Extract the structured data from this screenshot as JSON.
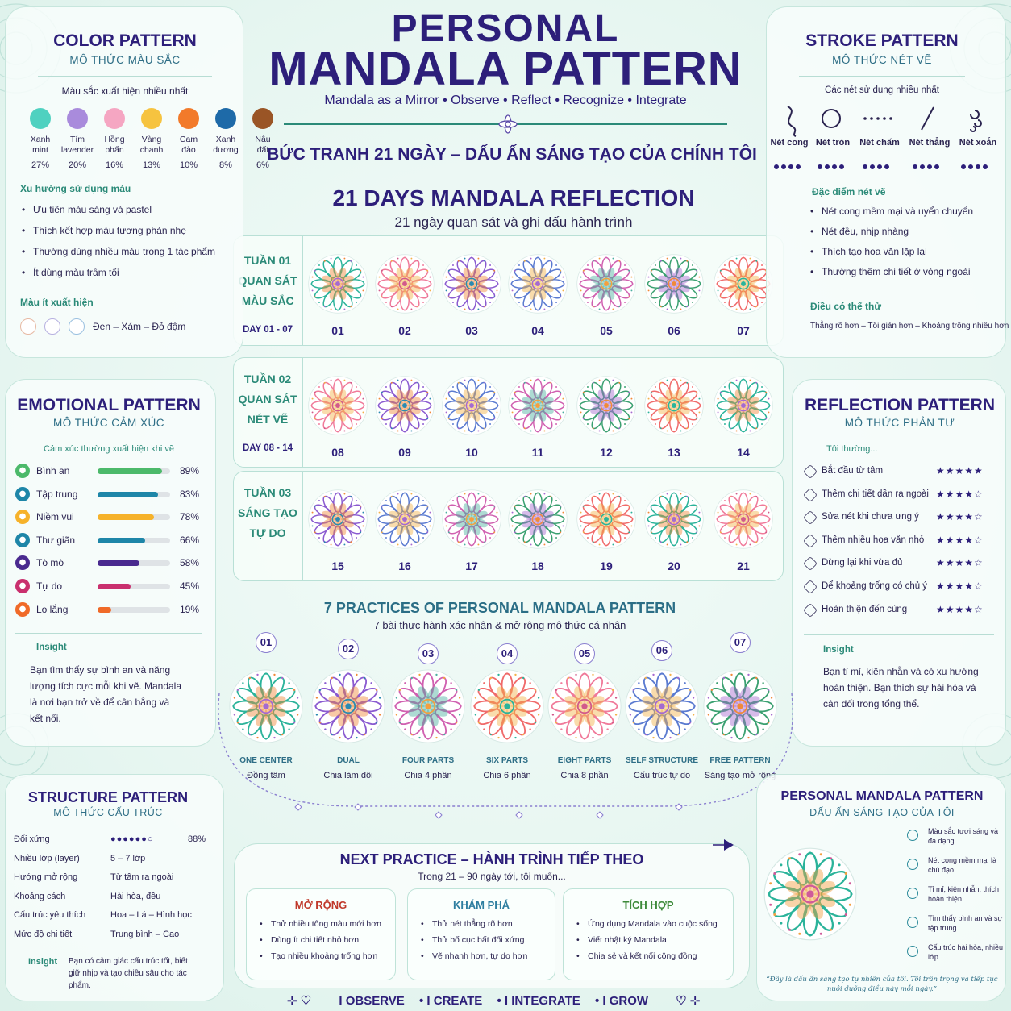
{
  "header": {
    "line1": "PERSONAL",
    "line2": "MANDALA PATTERN",
    "tagline": "Mandala as a Mirror  •  Observe  •  Reflect  •  Recognize  •  Integrate",
    "banner": "BỨC TRANH 21 NGÀY – DẤU ẤN SÁNG TẠO CỦA CHÍNH TÔI"
  },
  "reflection": {
    "title": "21 DAYS MANDALA REFLECTION",
    "subtitle": "21 ngày quan sát và ghi dấu hành trình",
    "weeks": [
      {
        "line1": "TUẦN 01",
        "line2": "QUAN SÁT",
        "line3": "MÀU SẮC",
        "days": "DAY 01 - 07",
        "nums": [
          "01",
          "02",
          "03",
          "04",
          "05",
          "06",
          "07"
        ]
      },
      {
        "line1": "TUẦN 02",
        "line2": "QUAN SÁT",
        "line3": "NÉT VẼ",
        "days": "DAY 08 - 14",
        "nums": [
          "08",
          "09",
          "10",
          "11",
          "12",
          "13",
          "14"
        ]
      },
      {
        "line1": "TUẦN 03",
        "line2": "SÁNG TẠO",
        "line3": "TỰ DO",
        "days": "",
        "nums": [
          "15",
          "16",
          "17",
          "18",
          "19",
          "20",
          "21"
        ]
      }
    ]
  },
  "color_pattern": {
    "title": "COLOR PATTERN",
    "subtitle": "MÔ THỨC MÀU SẮC",
    "caption": "Màu sắc xuất hiện nhiều nhất",
    "colors": [
      {
        "l1": "Xanh",
        "l2": "mint",
        "pct": "27%",
        "hex": "#4fd1c0"
      },
      {
        "l1": "Tím",
        "l2": "lavender",
        "pct": "20%",
        "hex": "#a98bdc"
      },
      {
        "l1": "Hồng",
        "l2": "phấn",
        "pct": "16%",
        "hex": "#f5a6c2"
      },
      {
        "l1": "Vàng",
        "l2": "chanh",
        "pct": "13%",
        "hex": "#f6c33f"
      },
      {
        "l1": "Cam",
        "l2": "đào",
        "pct": "10%",
        "hex": "#f27a2a"
      },
      {
        "l1": "Xanh",
        "l2": "dương",
        "pct": "8%",
        "hex": "#1e6aa8"
      },
      {
        "l1": "Nâu",
        "l2": "đất",
        "pct": "6%",
        "hex": "#9a5526"
      }
    ],
    "trend_title": "Xu hướng sử dụng màu",
    "trends": [
      "Ưu tiên màu sáng và pastel",
      "Thích kết hợp màu tương phản nhẹ",
      "Thường dùng nhiều màu trong 1 tác phẩm",
      "Ít dùng màu trầm tối"
    ],
    "rare_title": "Màu ít xuất hiện",
    "rare_text": "Đen – Xám – Đỏ đậm"
  },
  "stroke_pattern": {
    "title": "STROKE PATTERN",
    "subtitle": "MÔ THỨC NÉT VẼ",
    "caption": "Các nét sử dụng nhiều nhất",
    "strokes": [
      {
        "label": "Nét cong",
        "icon": "curve-icon"
      },
      {
        "label": "Nét tròn",
        "icon": "circle-icon"
      },
      {
        "label": "Nét chấm",
        "icon": "dots-icon"
      },
      {
        "label": "Nét thẳng",
        "icon": "line-icon"
      },
      {
        "label": "Nét xoắn",
        "icon": "spiral-icon"
      }
    ],
    "feat_title": "Đặc điểm nét vẽ",
    "features": [
      "Nét cong mềm mại và uyển chuyển",
      "Nét đều, nhịp nhàng",
      "Thích tạo hoa văn lặp lại",
      "Thường thêm chi tiết ở vòng ngoài"
    ],
    "try_title": "Điều có thể thử",
    "try_text": "Thẳng rõ hơn – Tối giản hơn – Khoảng trống nhiều hơn"
  },
  "emotional_pattern": {
    "title": "EMOTIONAL PATTERN",
    "subtitle": "MÔ THỨC CẢM XÚC",
    "caption": "Cảm xúc thường xuất hiện khi vẽ",
    "items": [
      {
        "label": "Bình an",
        "pct": "89%",
        "value": 0.89,
        "hex": "#4cb96a",
        "icon": "heart-icon"
      },
      {
        "label": "Tập trung",
        "pct": "83%",
        "value": 0.83,
        "hex": "#1e86a8",
        "icon": "focus-icon"
      },
      {
        "label": "Niềm vui",
        "pct": "78%",
        "value": 0.78,
        "hex": "#f6b22a",
        "icon": "smile-icon"
      },
      {
        "label": "Thư giãn",
        "pct": "66%",
        "value": 0.66,
        "hex": "#1e86a8",
        "icon": "relax-icon"
      },
      {
        "label": "Tò mò",
        "pct": "58%",
        "value": 0.58,
        "hex": "#4a2a8f",
        "icon": "curious-icon"
      },
      {
        "label": "Tự do",
        "pct": "45%",
        "value": 0.45,
        "hex": "#c9306e",
        "icon": "free-icon"
      },
      {
        "label": "Lo lắng",
        "pct": "19%",
        "value": 0.19,
        "hex": "#f06a28",
        "icon": "worry-icon"
      }
    ],
    "insight_title": "Insight",
    "insight": "Bạn tìm thấy sự bình an và năng lượng tích cực mỗi khi vẽ. Mandala là nơi bạn trở về để cân bằng và kết nối."
  },
  "reflection_pattern": {
    "title": "REFLECTION PATTERN",
    "subtitle": "MÔ THỨC PHẢN TƯ",
    "caption": "Tôi thường...",
    "items": [
      {
        "label": "Bắt đầu từ tâm",
        "stars": "★★★★★",
        "rating": 5
      },
      {
        "label": "Thêm chi tiết dần ra ngoài",
        "stars": "★★★★☆",
        "rating": 4
      },
      {
        "label": "Sửa nét khi chưa ưng ý",
        "stars": "★★★★☆",
        "rating": 4
      },
      {
        "label": "Thêm nhiều hoa văn nhỏ",
        "stars": "★★★★☆",
        "rating": 4
      },
      {
        "label": "Dừng lại khi vừa đủ",
        "stars": "★★★★☆",
        "rating": 4
      },
      {
        "label": "Để khoảng trống có chủ ý",
        "stars": "★★★★☆",
        "rating": 4
      },
      {
        "label": "Hoàn thiện đến cùng",
        "stars": "★★★★☆",
        "rating": 4
      }
    ],
    "insight_title": "Insight",
    "insight": "Bạn tỉ mỉ, kiên nhẫn và có xu hướng hoàn thiện. Bạn thích sự hài hòa và cân đối trong tổng thể."
  },
  "practices": {
    "title": "7 PRACTICES OF PERSONAL MANDALA PATTERN",
    "subtitle": "7 bài thực hành xác nhận & mở rộng mô thức cá nhân",
    "items": [
      {
        "num": "01",
        "name": "ONE CENTER",
        "desc": "Đồng tâm"
      },
      {
        "num": "02",
        "name": "DUAL",
        "desc": "Chia làm đôi"
      },
      {
        "num": "03",
        "name": "FOUR PARTS",
        "desc": "Chia 4 phần"
      },
      {
        "num": "04",
        "name": "SIX PARTS",
        "desc": "Chia 6 phần"
      },
      {
        "num": "05",
        "name": "EIGHT PARTS",
        "desc": "Chia 8 phần"
      },
      {
        "num": "06",
        "name": "SELF STRUCTURE",
        "desc": "Cấu trúc tự do"
      },
      {
        "num": "07",
        "name": "FREE PATTERN",
        "desc": "Sáng tạo mở rộng"
      }
    ]
  },
  "structure_pattern": {
    "title": "STRUCTURE PATTERN",
    "subtitle": "MÔ THỨC CẤU TRÚC",
    "rows": [
      {
        "label": "Đối xứng",
        "value": "●●●●●●○",
        "pct": "88%"
      },
      {
        "label": "Nhiều lớp (layer)",
        "value": "5 – 7 lớp"
      },
      {
        "label": "Hướng mở rộng",
        "value": "Từ tâm ra ngoài"
      },
      {
        "label": "Khoảng cách",
        "value": "Hài hòa, đều"
      },
      {
        "label": "Cấu trúc yêu thích",
        "value": "Hoa – Lá – Hình học"
      },
      {
        "label": "Mức độ chi tiết",
        "value": "Trung bình – Cao"
      }
    ],
    "insight_title": "Insight",
    "insight": "Bạn có cảm giác cấu trúc tốt, biết giữ nhịp và tạo chiều sâu cho tác phẩm."
  },
  "next_practice": {
    "title": "NEXT PRACTICE – HÀNH TRÌNH TIẾP THEO",
    "subtitle": "Trong 21 – 90 ngày tới, tôi muốn...",
    "cards": [
      {
        "title": "MỞ RỘNG",
        "items": [
          "Thử nhiều tông màu mới hơn",
          "Dùng ít chi tiết nhỏ hơn",
          "Tạo nhiều khoảng trống hơn"
        ]
      },
      {
        "title": "KHÁM PHÁ",
        "items": [
          "Thử nét thẳng rõ hơn",
          "Thử bố cục bất đối xứng",
          "Vẽ nhanh hơn, tự do hơn"
        ]
      },
      {
        "title": "TÍCH HỢP",
        "items": [
          "Ứng dụng Mandala vào cuộc sống",
          "Viết nhật ký Mandala",
          "Chia sẻ và kết nối cộng đồng"
        ]
      }
    ]
  },
  "signature": {
    "title": "PERSONAL MANDALA PATTERN",
    "subtitle": "DẤU ẤN SÁNG TẠO CỦA TÔI",
    "traits": [
      {
        "text": "Màu sắc tươi sáng và đa dạng",
        "icon": "drop-icon"
      },
      {
        "text": "Nét cong mềm mại là chủ đạo",
        "icon": "curve-tool-icon"
      },
      {
        "text": "Tỉ mỉ, kiên nhẫn, thích hoàn thiện",
        "icon": "pen-icon"
      },
      {
        "text": "Tìm thấy bình an và sự tập trung",
        "icon": "snowflake-icon"
      },
      {
        "text": "Cấu trúc hài hòa, nhiều lớp",
        "icon": "flower-icon"
      }
    ],
    "quote": "“Đây là dấu ấn sáng tạo tự nhiên của tôi. Tôi trân trọng và tiếp tục nuôi dưỡng điều này mỗi ngày.”"
  },
  "footer": {
    "words": [
      "OBSERVE",
      "CREATE",
      "INTEGRATE",
      "GROW"
    ]
  }
}
